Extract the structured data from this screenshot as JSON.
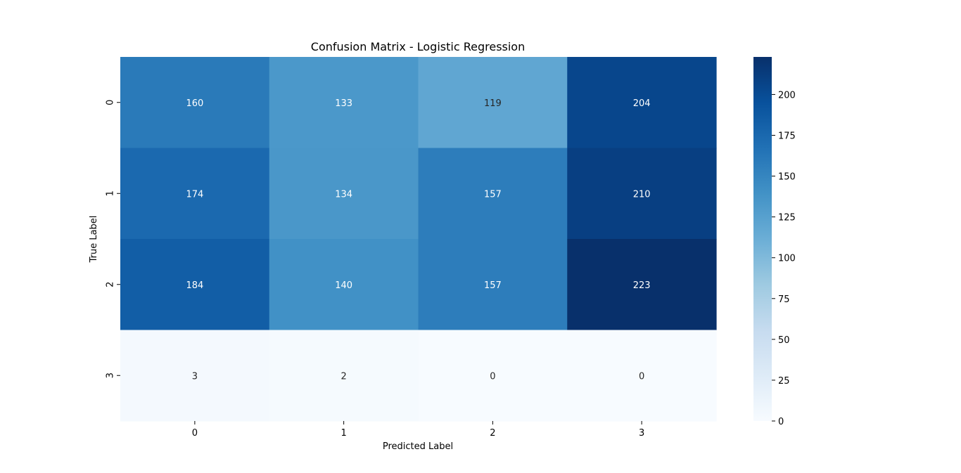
{
  "chart_data": {
    "type": "heatmap",
    "title": "Confusion Matrix - Logistic Regression",
    "xlabel": "Predicted Label",
    "ylabel": "True Label",
    "x_categories": [
      "0",
      "1",
      "2",
      "3"
    ],
    "y_categories": [
      "0",
      "1",
      "2",
      "3"
    ],
    "values": [
      [
        160,
        133,
        119,
        204
      ],
      [
        174,
        134,
        157,
        210
      ],
      [
        184,
        140,
        157,
        223
      ],
      [
        3,
        2,
        0,
        0
      ]
    ],
    "colormap": "Blues",
    "colorbar": {
      "min": 0,
      "max": 223,
      "ticks": [
        0,
        25,
        50,
        75,
        100,
        125,
        150,
        175,
        200
      ]
    },
    "annotation_color_light": "#ffffff",
    "annotation_color_dark": "#262626"
  }
}
